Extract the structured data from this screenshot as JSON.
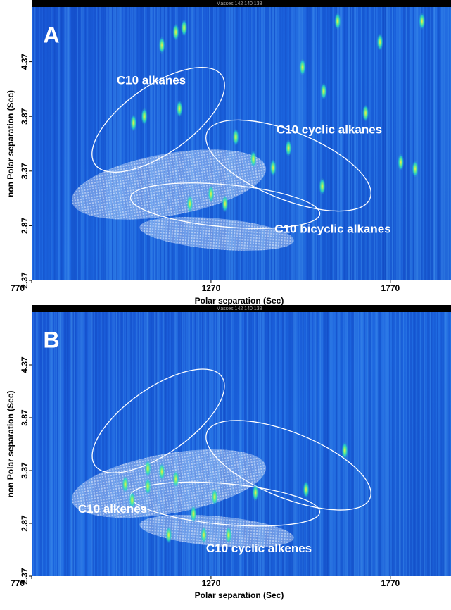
{
  "chart_data": [
    {
      "type": "scatter",
      "title": "Masses  142 140 138",
      "panel_label": "A",
      "x_label": "Polar separation (Sec)",
      "y_label": "non Polar separation (Sec)",
      "xlim": [
        770,
        1939
      ],
      "ylim": [
        2.37,
        4.87
      ],
      "xticks": [
        770,
        1270,
        1770
      ],
      "yticks": [
        2.37,
        2.87,
        3.37,
        3.87,
        4.37
      ],
      "annotations": [
        "C10 alkanes",
        "C10 cyclic alkanes",
        "C10 bicyclic alkanes"
      ],
      "color": "#3ee08a",
      "x": [
        1054,
        1084,
        1182,
        1133,
        1172,
        1195,
        1270,
        1388,
        1443,
        1580,
        1701,
        1525,
        1584,
        1799,
        1839,
        1741,
        1858,
        1623,
        1309,
        1211,
        1339,
        1486
      ],
      "y": [
        3.81,
        3.87,
        3.94,
        4.52,
        4.64,
        4.68,
        3.16,
        3.48,
        3.4,
        3.23,
        3.9,
        4.32,
        4.1,
        3.45,
        3.39,
        4.55,
        4.74,
        4.74,
        3.07,
        3.07,
        3.68,
        3.58
      ]
    },
    {
      "type": "scatter",
      "title": "Masses  142 140 138",
      "panel_label": "B",
      "x_label": "Polar separation (Sec)",
      "y_label": "non Polar separation (Sec)",
      "xlim": [
        770,
        1939
      ],
      "ylim": [
        2.37,
        4.87
      ],
      "xticks": [
        770,
        1270,
        1770
      ],
      "yticks": [
        2.37,
        2.87,
        3.37,
        3.87,
        4.37
      ],
      "annotations": [
        "C10 alkenes",
        "C10 cyclic alkenes"
      ],
      "color": "#3ee08a",
      "x": [
        1031,
        1094,
        1152,
        1133,
        1221,
        1280,
        1394,
        1250,
        1319,
        1535,
        1643,
        1050,
        1172,
        1094
      ],
      "y": [
        3.24,
        3.22,
        2.76,
        3.36,
        2.96,
        3.12,
        3.16,
        2.76,
        2.76,
        3.19,
        3.56,
        3.09,
        3.29,
        3.39
      ]
    }
  ]
}
